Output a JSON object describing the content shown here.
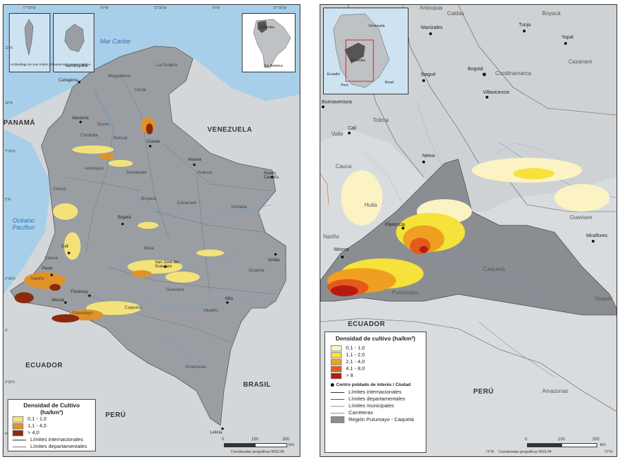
{
  "left_map": {
    "sea_labels": [
      "Mar Caribe",
      "Océano Pacífico"
    ],
    "countries": [
      "PANAMÁ",
      "VENEZUELA",
      "ECUADOR",
      "PERÚ",
      "BRASIL"
    ],
    "cities": [
      "Barranquilla",
      "Cartagena",
      "Arauca",
      "Puerto Carreño",
      "Bogotá",
      "Cali",
      "Pasto",
      "Florencia",
      "Mocoa",
      "Leticia",
      "Mitú",
      "San José del Guaviare",
      "Inírida",
      "Cúcuta",
      "Montería"
    ],
    "departments": [
      "Magdalena",
      "Cesar",
      "La Guajira",
      "Sucre",
      "Córdoba",
      "Bolívar",
      "Antioquia",
      "Chocó",
      "Santander",
      "Boyacá",
      "Casanare",
      "Vichada",
      "Meta",
      "Guainía",
      "Guaviare",
      "Vaupés",
      "Caquetá",
      "Amazonas",
      "Nariño",
      "Cauca",
      "Putumayo",
      "Arauca"
    ],
    "inset_labels": [
      "Archipiélago de San Andrés, Providencia y Santa Catalina",
      "Colombia",
      "Sur América"
    ],
    "legend": {
      "title": "Densidad de Cultivo (ha/km²)",
      "classes": [
        {
          "label": "0,1 - 1,0",
          "color": "#f3e27a"
        },
        {
          "label": "1,1 - 4,0",
          "color": "#e0922a"
        },
        {
          "label": "> 4,0",
          "color": "#8c2a10"
        }
      ],
      "lines": [
        "Límites internacionales",
        "Límites departamentales"
      ]
    },
    "scale": {
      "ticks": [
        "0",
        "150",
        "300"
      ],
      "unit": "km"
    },
    "coords_top": [
      "77°30'W",
      "75°W",
      "72°30'W",
      "70°W",
      "67°30'W"
    ],
    "coords_side": [
      "12°N",
      "10°N",
      "7°30'N",
      "5°N",
      "2°30'N",
      "0°",
      "2°30'S",
      "4°S"
    ],
    "footer": "Coordenadas geográficas WGS 84"
  },
  "right_map": {
    "countries": [
      "ECUADOR",
      "PERÚ"
    ],
    "cities": [
      "Tunja",
      "Yopal",
      "Manizales",
      "Ibagué",
      "Bogotá",
      "Villavicencio",
      "Buenaventura",
      "Cali",
      "Neiva",
      "Florencia",
      "Mocoa",
      "Miraflores"
    ],
    "departments": [
      "Antioquia",
      "Caldas",
      "Boyacá",
      "Casanare",
      "Cundinamarca",
      "Tolima",
      "Valle",
      "Cauca",
      "Huila",
      "Nariño",
      "Caquetá",
      "Putumayo",
      "Guaviare",
      "Vaupés",
      "Amazonas"
    ],
    "inset_labels": [
      "Venezuela",
      "Colombia",
      "Ecuador",
      "Perú",
      "Brasil"
    ],
    "legend": {
      "title": "Densidad de cultivo (ha/km²)",
      "classes": [
        {
          "label": "0,1 - 1,0",
          "color": "#fbf3c4"
        },
        {
          "label": "1,1 - 2,0",
          "color": "#f5e23a"
        },
        {
          "label": "2,1 - 4,0",
          "color": "#f0a020"
        },
        {
          "label": "4,1 - 8,0",
          "color": "#e45a1c"
        },
        {
          "label": "> 8",
          "color": "#b81a12"
        }
      ],
      "point": "Centro poblado de interés / Ciudad",
      "lines": [
        {
          "label": "Límites internacionales",
          "color": "#333333"
        },
        {
          "label": "Límites departamentales",
          "color": "#555555"
        },
        {
          "label": "Límites municipales",
          "color": "#999999"
        },
        {
          "label": "Carreteras",
          "color": "#e07a3a"
        }
      ],
      "region": "Región Putumayo - Caquetá"
    },
    "scale": {
      "ticks": [
        "0",
        "100",
        "200"
      ],
      "unit": "km"
    },
    "coords_bottom": [
      "74°W",
      "72°W"
    ],
    "footer": "Coordenadas geográficas WGS 84"
  },
  "colors": {
    "sea": "#a8cfe9",
    "land_other": "#d9dcde",
    "colombia": "#9a9ea2",
    "region": "#8a8e92"
  }
}
